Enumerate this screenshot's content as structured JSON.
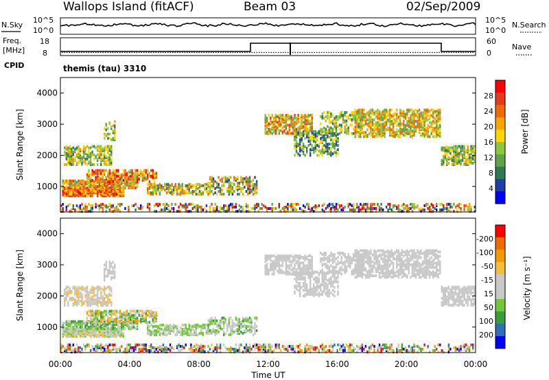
{
  "header": {
    "site": "Wallops Island (fitACF)",
    "beam": "Beam 03",
    "date": "02/Sep/2009"
  },
  "left_labels": {
    "nsky": "N.Sky",
    "freq": "Freq.",
    "freq_unit": "[MHz]",
    "cpid": "CPID"
  },
  "right_labels": {
    "nsearch": "N.Search",
    "nave": "Nave"
  },
  "noise_ticks": {
    "top": "10^5",
    "bottom": "10^0"
  },
  "freq_ticks": {
    "left": [
      "18",
      "8"
    ],
    "right": [
      "60",
      "0"
    ]
  },
  "cpid_text": "themis (tau) 3310",
  "colors": {
    "power": [
      "#0000ff",
      "#1f3fa8",
      "#2e7a57",
      "#5fa24c",
      "#8dc63f",
      "#ffd700",
      "#f7a600",
      "#ef6a00",
      "#e53b1c",
      "#ff0000"
    ],
    "velocity": [
      "#ff0000",
      "#f06a00",
      "#f29a00",
      "#f5bd3a",
      "#c8c8c8",
      "#c8c8c8",
      "#71c837",
      "#3c9e3a",
      "#2f6fb5",
      "#0000ff"
    ]
  },
  "chart_data": [
    {
      "type": "heatmap",
      "name": "power",
      "ylabel": "Slant Range [km]",
      "yticks": [
        "1000",
        "2000",
        "3000",
        "4000"
      ],
      "ylim": [
        180,
        4500
      ],
      "xlim": [
        "00:00",
        "24:00"
      ],
      "colorbar": {
        "label": "Power [dB]",
        "tick_labels": [
          "4",
          "8",
          "12",
          "16",
          "20",
          "24",
          "28"
        ],
        "range": [
          0,
          32
        ]
      }
    },
    {
      "type": "heatmap",
      "name": "velocity",
      "ylabel": "Slant Range [km]",
      "yticks": [
        "1000",
        "2000",
        "3000",
        "4000"
      ],
      "ylim": [
        180,
        4500
      ],
      "xlim": [
        "00:00",
        "24:00"
      ],
      "xlabel": "Time UT",
      "xticks": [
        "00:00",
        "04:00",
        "08:00",
        "12:00",
        "16:00",
        "20:00",
        "00:00"
      ],
      "colorbar": {
        "label": "Velocity [m s⁻¹]",
        "tick_labels": [
          "200",
          "100",
          "50",
          "15",
          "-15",
          "-50",
          "-100",
          "-200"
        ],
        "range": [
          -250,
          250
        ]
      }
    }
  ]
}
